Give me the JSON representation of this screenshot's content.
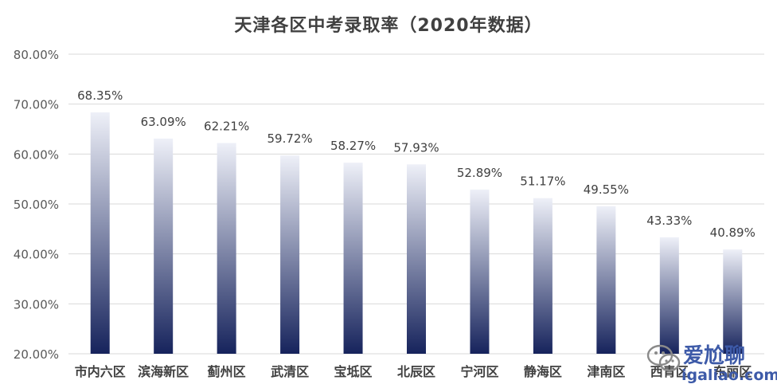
{
  "chart_data": {
    "type": "bar",
    "title": "天津各区中考录取率（2020年数据）",
    "categories": [
      "市内六区",
      "滨海新区",
      "蓟州区",
      "武清区",
      "宝坻区",
      "北辰区",
      "宁河区",
      "静海区",
      "津南区",
      "西青区",
      "东丽区"
    ],
    "values": [
      68.35,
      63.09,
      62.21,
      59.72,
      58.27,
      57.93,
      52.89,
      51.17,
      49.55,
      43.33,
      40.89
    ],
    "value_labels": [
      "68.35%",
      "63.09%",
      "62.21%",
      "59.72%",
      "58.27%",
      "57.93%",
      "52.89%",
      "51.17%",
      "49.55%",
      "43.33%",
      "40.89%"
    ],
    "yticks": [
      20,
      30,
      40,
      50,
      60,
      70,
      80
    ],
    "ytick_labels": [
      "20.00%",
      "30.00%",
      "40.00%",
      "50.00%",
      "60.00%",
      "70.00%",
      "80.00%"
    ],
    "ylim": [
      20,
      80
    ],
    "xlabel": "",
    "ylabel": "",
    "grid": true,
    "colors": {
      "bar_top": "#eef0f8",
      "bar_bottom": "#16235c",
      "grid": "#d9d9d9",
      "text": "#404040"
    }
  },
  "watermark": {
    "line1": "爱尬聊",
    "line2": "igaliao.com",
    "icon": "wechat-logo-icon"
  }
}
